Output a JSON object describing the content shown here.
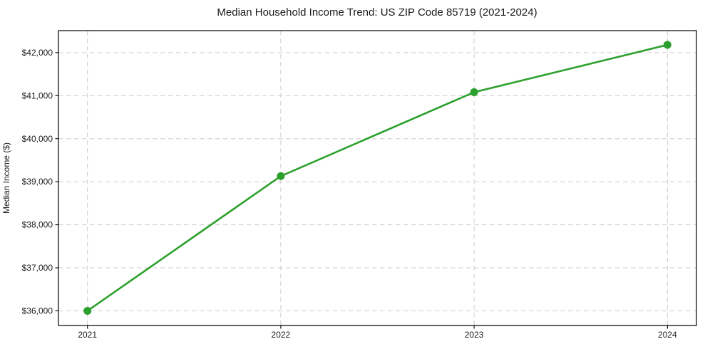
{
  "figure": {
    "background": "#ffffff"
  },
  "chart_data": {
    "type": "line",
    "title": "Median Household Income Trend: US ZIP Code 85719 (2021-2024)",
    "xlabel": "",
    "ylabel": "Median Income ($)",
    "x": [
      2021,
      2022,
      2023,
      2024
    ],
    "series": [
      {
        "name": "median-household-income",
        "values": [
          36000,
          39130,
          41080,
          42180
        ],
        "color": "#2ca02c",
        "line_width": 2.6,
        "marker": "circle",
        "marker_radius": 5.5
      }
    ],
    "x_ticks": [
      2021,
      2022,
      2023,
      2024
    ],
    "x_tick_labels": [
      "2021",
      "2022",
      "2023",
      "2024"
    ],
    "y_ticks": [
      36000,
      37000,
      38000,
      39000,
      40000,
      41000,
      42000
    ],
    "y_tick_labels": [
      "$36,000",
      "$37,000",
      "$38,000",
      "$39,000",
      "$40,000",
      "$41,000",
      "$42,000"
    ],
    "xlim": [
      2020.85,
      2024.15
    ],
    "ylim": [
      35660,
      42510
    ],
    "grid": true,
    "grid_style": "dashed",
    "grid_color": "#cccccc",
    "axis_color": "#000000",
    "text_color": "#1a1a1a",
    "legend": null
  }
}
